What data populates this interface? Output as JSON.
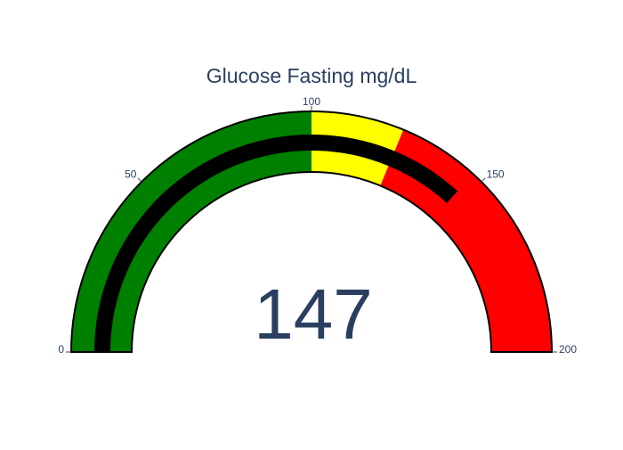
{
  "chart_data": {
    "type": "gauge",
    "title": "Glucose Fasting mg/dL",
    "value": 147,
    "value_label": "147",
    "range": [
      0,
      200
    ],
    "ticks": [
      {
        "value": 0,
        "label": "0"
      },
      {
        "value": 50,
        "label": "50"
      },
      {
        "value": 100,
        "label": "100"
      },
      {
        "value": 150,
        "label": "150"
      },
      {
        "value": 200,
        "label": "200"
      }
    ],
    "steps": [
      {
        "range": [
          0,
          100
        ],
        "color": "#008000"
      },
      {
        "range": [
          100,
          125
        ],
        "color": "#ffff00"
      },
      {
        "range": [
          125,
          200
        ],
        "color": "#ff0000"
      }
    ],
    "bar_color": "#000000",
    "outline_color": "#000000",
    "text_color": "#2a3f5f"
  }
}
